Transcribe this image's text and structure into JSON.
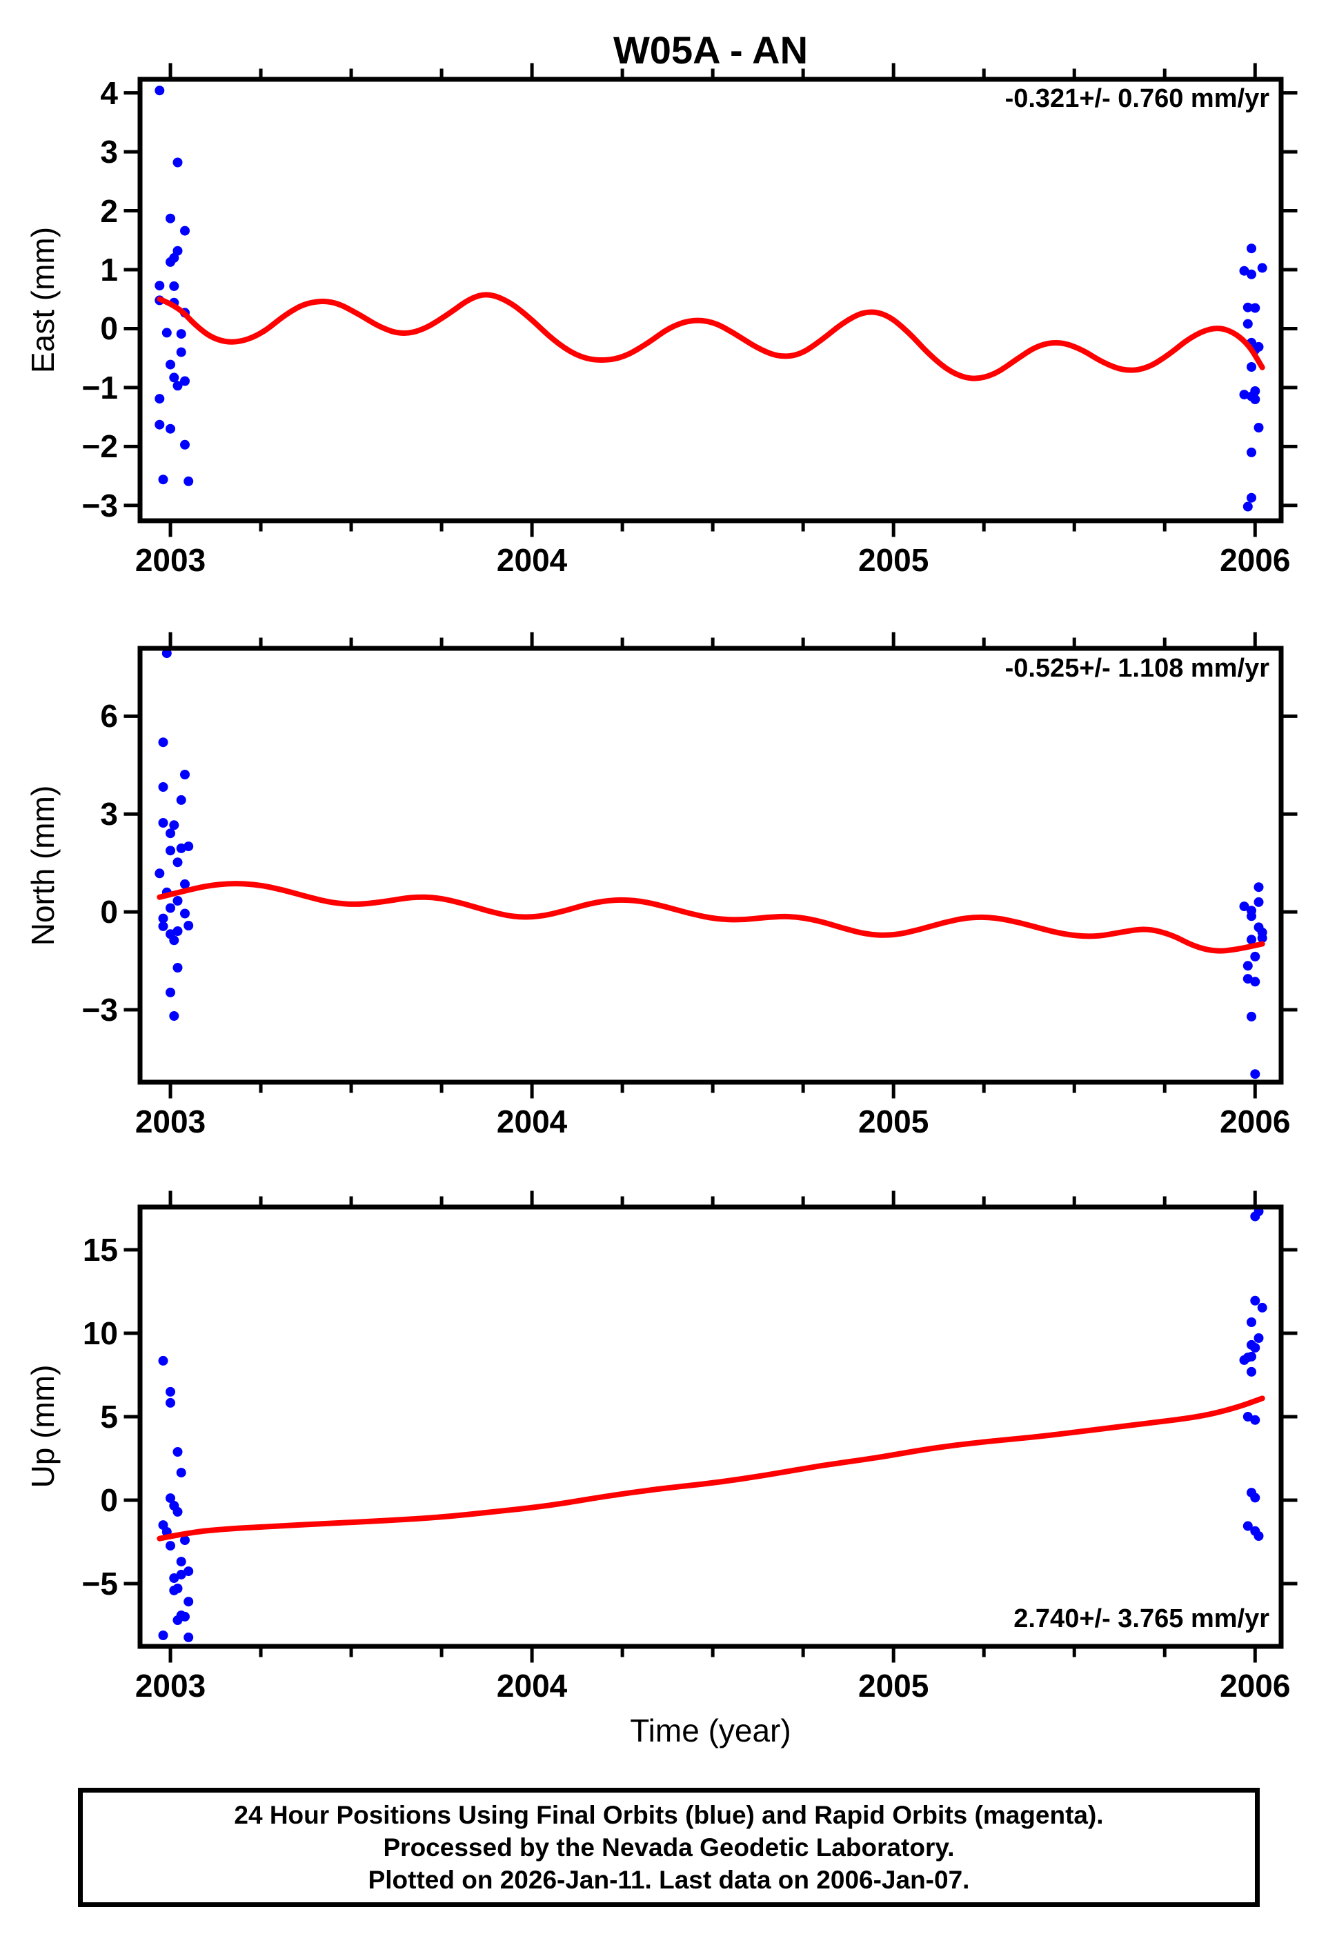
{
  "title": "W05A - AN",
  "xlabel": "Time (year)",
  "caption": {
    "line1": "24 Hour Positions Using Final Orbits (blue) and Rapid Orbits (magenta).",
    "line2": "Processed by the Nevada Geodetic Laboratory.",
    "line3": "Plotted on 2026-Jan-11. Last data on 2006-Jan-07."
  },
  "colors": {
    "points": "#0000ff",
    "model": "#ff0000",
    "frame": "#000000"
  },
  "x_axis": {
    "ticks": [
      2003,
      2004,
      2005,
      2006
    ],
    "minor_step": 0.25,
    "lim": [
      2002.916,
      2006.072
    ]
  },
  "chart_data": [
    {
      "type": "scatter",
      "name": "east",
      "ylabel": "East (mm)",
      "annotation": "-0.321+/- 0.760 mm/yr",
      "annotation_corner": "top-right",
      "ylim": [
        -3.26,
        4.23
      ],
      "yticks": [
        4,
        3,
        2,
        1,
        0,
        -1,
        -2,
        -3
      ],
      "points": [
        [
          2002.97,
          4.04
        ],
        [
          2003.02,
          2.82
        ],
        [
          2003.0,
          1.87
        ],
        [
          2003.04,
          1.66
        ],
        [
          2003.02,
          1.32
        ],
        [
          2003.01,
          1.2
        ],
        [
          2003.0,
          1.13
        ],
        [
          2002.97,
          0.73
        ],
        [
          2003.01,
          0.72
        ],
        [
          2002.97,
          0.48
        ],
        [
          2003.01,
          0.44
        ],
        [
          2003.04,
          0.27
        ],
        [
          2002.99,
          -0.07
        ],
        [
          2003.03,
          -0.09
        ],
        [
          2003.03,
          -0.4
        ],
        [
          2003.0,
          -0.61
        ],
        [
          2003.01,
          -0.83
        ],
        [
          2003.04,
          -0.89
        ],
        [
          2003.02,
          -0.97
        ],
        [
          2002.97,
          -1.19
        ],
        [
          2002.97,
          -1.63
        ],
        [
          2003.0,
          -1.7
        ],
        [
          2003.04,
          -1.97
        ],
        [
          2002.98,
          -2.56
        ],
        [
          2003.05,
          -2.59
        ],
        [
          2005.99,
          1.36
        ],
        [
          2006.02,
          1.03
        ],
        [
          2005.97,
          0.98
        ],
        [
          2005.99,
          0.92
        ],
        [
          2005.98,
          0.36
        ],
        [
          2006.0,
          0.35
        ],
        [
          2005.98,
          0.08
        ],
        [
          2005.99,
          -0.24
        ],
        [
          2006.01,
          -0.31
        ],
        [
          2006.0,
          -0.36
        ],
        [
          2005.99,
          -0.65
        ],
        [
          2006.0,
          -1.06
        ],
        [
          2005.97,
          -1.12
        ],
        [
          2005.99,
          -1.15
        ],
        [
          2006.0,
          -1.2
        ],
        [
          2006.01,
          -1.68
        ],
        [
          2005.99,
          -2.1
        ],
        [
          2005.99,
          -2.87
        ],
        [
          2005.98,
          -3.02
        ]
      ],
      "model": [
        [
          2002.97,
          0.5
        ],
        [
          2003.02,
          0.38
        ],
        [
          2003.07,
          0.05
        ],
        [
          2003.12,
          -0.18
        ],
        [
          2003.18,
          -0.25
        ],
        [
          2003.25,
          -0.1
        ],
        [
          2003.32,
          0.25
        ],
        [
          2003.38,
          0.45
        ],
        [
          2003.45,
          0.47
        ],
        [
          2003.52,
          0.25
        ],
        [
          2003.58,
          0.02
        ],
        [
          2003.64,
          -0.1
        ],
        [
          2003.7,
          -0.02
        ],
        [
          2003.77,
          0.25
        ],
        [
          2003.83,
          0.52
        ],
        [
          2003.88,
          0.6
        ],
        [
          2003.94,
          0.45
        ],
        [
          2004.0,
          0.15
        ],
        [
          2004.06,
          -0.2
        ],
        [
          2004.12,
          -0.45
        ],
        [
          2004.18,
          -0.55
        ],
        [
          2004.25,
          -0.5
        ],
        [
          2004.32,
          -0.25
        ],
        [
          2004.38,
          0.02
        ],
        [
          2004.44,
          0.15
        ],
        [
          2004.5,
          0.12
        ],
        [
          2004.56,
          -0.08
        ],
        [
          2004.62,
          -0.32
        ],
        [
          2004.68,
          -0.48
        ],
        [
          2004.74,
          -0.45
        ],
        [
          2004.8,
          -0.2
        ],
        [
          2004.86,
          0.1
        ],
        [
          2004.92,
          0.3
        ],
        [
          2004.98,
          0.25
        ],
        [
          2005.04,
          -0.05
        ],
        [
          2005.1,
          -0.45
        ],
        [
          2005.16,
          -0.75
        ],
        [
          2005.22,
          -0.87
        ],
        [
          2005.28,
          -0.78
        ],
        [
          2005.34,
          -0.52
        ],
        [
          2005.4,
          -0.28
        ],
        [
          2005.46,
          -0.22
        ],
        [
          2005.52,
          -0.35
        ],
        [
          2005.58,
          -0.58
        ],
        [
          2005.64,
          -0.72
        ],
        [
          2005.7,
          -0.68
        ],
        [
          2005.76,
          -0.45
        ],
        [
          2005.82,
          -0.15
        ],
        [
          2005.88,
          0.02
        ],
        [
          2005.93,
          -0.02
        ],
        [
          2005.98,
          -0.25
        ],
        [
          2006.02,
          -0.66
        ]
      ]
    },
    {
      "type": "scatter",
      "name": "north",
      "ylabel": "North (mm)",
      "annotation": "-0.525+/- 1.108 mm/yr",
      "annotation_corner": "top-right",
      "ylim": [
        -5.22,
        8.08
      ],
      "yticks": [
        6,
        3,
        0,
        -3
      ],
      "points": [
        [
          2002.99,
          7.93
        ],
        [
          2002.98,
          5.2
        ],
        [
          2003.04,
          4.21
        ],
        [
          2002.98,
          3.83
        ],
        [
          2003.03,
          3.43
        ],
        [
          2002.98,
          2.73
        ],
        [
          2003.01,
          2.66
        ],
        [
          2003.0,
          2.41
        ],
        [
          2003.05,
          2.01
        ],
        [
          2003.03,
          1.95
        ],
        [
          2003.0,
          1.88
        ],
        [
          2003.02,
          1.52
        ],
        [
          2002.97,
          1.18
        ],
        [
          2003.04,
          0.85
        ],
        [
          2002.99,
          0.6
        ],
        [
          2003.02,
          0.34
        ],
        [
          2003.0,
          0.12
        ],
        [
          2003.04,
          -0.05
        ],
        [
          2002.98,
          -0.2
        ],
        [
          2003.05,
          -0.42
        ],
        [
          2002.98,
          -0.44
        ],
        [
          2003.02,
          -0.59
        ],
        [
          2003.0,
          -0.68
        ],
        [
          2003.01,
          -0.87
        ],
        [
          2003.02,
          -1.71
        ],
        [
          2003.0,
          -2.47
        ],
        [
          2003.01,
          -3.19
        ],
        [
          2006.01,
          0.76
        ],
        [
          2006.01,
          0.3
        ],
        [
          2005.97,
          0.17
        ],
        [
          2005.99,
          0.04
        ],
        [
          2005.99,
          -0.13
        ],
        [
          2006.01,
          -0.47
        ],
        [
          2006.02,
          -0.63
        ],
        [
          2006.02,
          -0.8
        ],
        [
          2005.99,
          -0.85
        ],
        [
          2006.0,
          -1.37
        ],
        [
          2005.98,
          -1.65
        ],
        [
          2005.98,
          -2.05
        ],
        [
          2006.0,
          -2.14
        ],
        [
          2005.99,
          -3.21
        ],
        [
          2006.0,
          -4.97
        ]
      ],
      "model": [
        [
          2002.97,
          0.45
        ],
        [
          2003.03,
          0.62
        ],
        [
          2003.1,
          0.8
        ],
        [
          2003.17,
          0.88
        ],
        [
          2003.24,
          0.84
        ],
        [
          2003.31,
          0.68
        ],
        [
          2003.38,
          0.46
        ],
        [
          2003.45,
          0.27
        ],
        [
          2003.52,
          0.22
        ],
        [
          2003.6,
          0.33
        ],
        [
          2003.67,
          0.46
        ],
        [
          2003.74,
          0.44
        ],
        [
          2003.81,
          0.26
        ],
        [
          2003.88,
          0.02
        ],
        [
          2003.95,
          -0.16
        ],
        [
          2004.02,
          -0.15
        ],
        [
          2004.09,
          0.03
        ],
        [
          2004.16,
          0.26
        ],
        [
          2004.23,
          0.38
        ],
        [
          2004.3,
          0.34
        ],
        [
          2004.37,
          0.16
        ],
        [
          2004.44,
          -0.06
        ],
        [
          2004.51,
          -0.22
        ],
        [
          2004.58,
          -0.25
        ],
        [
          2004.65,
          -0.16
        ],
        [
          2004.72,
          -0.13
        ],
        [
          2004.79,
          -0.26
        ],
        [
          2004.86,
          -0.5
        ],
        [
          2004.93,
          -0.7
        ],
        [
          2005.0,
          -0.72
        ],
        [
          2005.07,
          -0.55
        ],
        [
          2005.14,
          -0.32
        ],
        [
          2005.21,
          -0.16
        ],
        [
          2005.28,
          -0.17
        ],
        [
          2005.35,
          -0.33
        ],
        [
          2005.42,
          -0.55
        ],
        [
          2005.49,
          -0.72
        ],
        [
          2005.56,
          -0.76
        ],
        [
          2005.63,
          -0.62
        ],
        [
          2005.7,
          -0.5
        ],
        [
          2005.77,
          -0.7
        ],
        [
          2005.83,
          -1.05
        ],
        [
          2005.89,
          -1.22
        ],
        [
          2005.95,
          -1.15
        ],
        [
          2006.02,
          -0.98
        ]
      ]
    },
    {
      "type": "scatter",
      "name": "up",
      "ylabel": "Up (mm)",
      "annotation": "2.740+/- 3.765 mm/yr",
      "annotation_corner": "bottom-right",
      "ylim": [
        -8.76,
        17.56
      ],
      "yticks": [
        15,
        10,
        5,
        0,
        -5
      ],
      "points": [
        [
          2002.98,
          8.35
        ],
        [
          2003.0,
          6.49
        ],
        [
          2003.0,
          5.83
        ],
        [
          2003.02,
          2.89
        ],
        [
          2003.03,
          1.65
        ],
        [
          2003.0,
          0.12
        ],
        [
          2003.01,
          -0.33
        ],
        [
          2003.02,
          -0.7
        ],
        [
          2002.98,
          -1.49
        ],
        [
          2002.99,
          -1.9
        ],
        [
          2003.04,
          -2.4
        ],
        [
          2003.0,
          -2.73
        ],
        [
          2003.03,
          -3.68
        ],
        [
          2003.05,
          -4.26
        ],
        [
          2003.03,
          -4.46
        ],
        [
          2003.01,
          -4.67
        ],
        [
          2003.02,
          -5.29
        ],
        [
          2003.01,
          -5.41
        ],
        [
          2003.05,
          -6.08
        ],
        [
          2003.03,
          -6.9
        ],
        [
          2003.04,
          -6.98
        ],
        [
          2003.02,
          -7.19
        ],
        [
          2002.98,
          -8.1
        ],
        [
          2003.05,
          -8.22
        ],
        [
          2006.01,
          17.3
        ],
        [
          2006.0,
          17.0
        ],
        [
          2006.0,
          11.95
        ],
        [
          2006.02,
          11.53
        ],
        [
          2005.99,
          10.66
        ],
        [
          2006.01,
          9.71
        ],
        [
          2005.99,
          9.3
        ],
        [
          2006.0,
          9.13
        ],
        [
          2005.99,
          8.6
        ],
        [
          2005.98,
          8.55
        ],
        [
          2005.97,
          8.39
        ],
        [
          2005.99,
          7.69
        ],
        [
          2005.98,
          5.0
        ],
        [
          2006.0,
          4.8
        ],
        [
          2005.99,
          0.45
        ],
        [
          2006.0,
          0.15
        ],
        [
          2005.98,
          -1.55
        ],
        [
          2006.0,
          -1.85
        ],
        [
          2006.01,
          -2.15
        ]
      ],
      "model": [
        [
          2002.97,
          -2.3
        ],
        [
          2003.05,
          -1.95
        ],
        [
          2003.15,
          -1.72
        ],
        [
          2003.3,
          -1.55
        ],
        [
          2003.45,
          -1.38
        ],
        [
          2003.6,
          -1.22
        ],
        [
          2003.75,
          -1.02
        ],
        [
          2003.9,
          -0.68
        ],
        [
          2004.0,
          -0.45
        ],
        [
          2004.1,
          -0.15
        ],
        [
          2004.2,
          0.22
        ],
        [
          2004.35,
          0.68
        ],
        [
          2004.5,
          1.02
        ],
        [
          2004.65,
          1.5
        ],
        [
          2004.8,
          2.08
        ],
        [
          2004.95,
          2.52
        ],
        [
          2005.1,
          3.1
        ],
        [
          2005.25,
          3.5
        ],
        [
          2005.4,
          3.8
        ],
        [
          2005.55,
          4.2
        ],
        [
          2005.7,
          4.6
        ],
        [
          2005.85,
          5.0
        ],
        [
          2005.95,
          5.55
        ],
        [
          2006.02,
          6.1
        ]
      ]
    }
  ]
}
